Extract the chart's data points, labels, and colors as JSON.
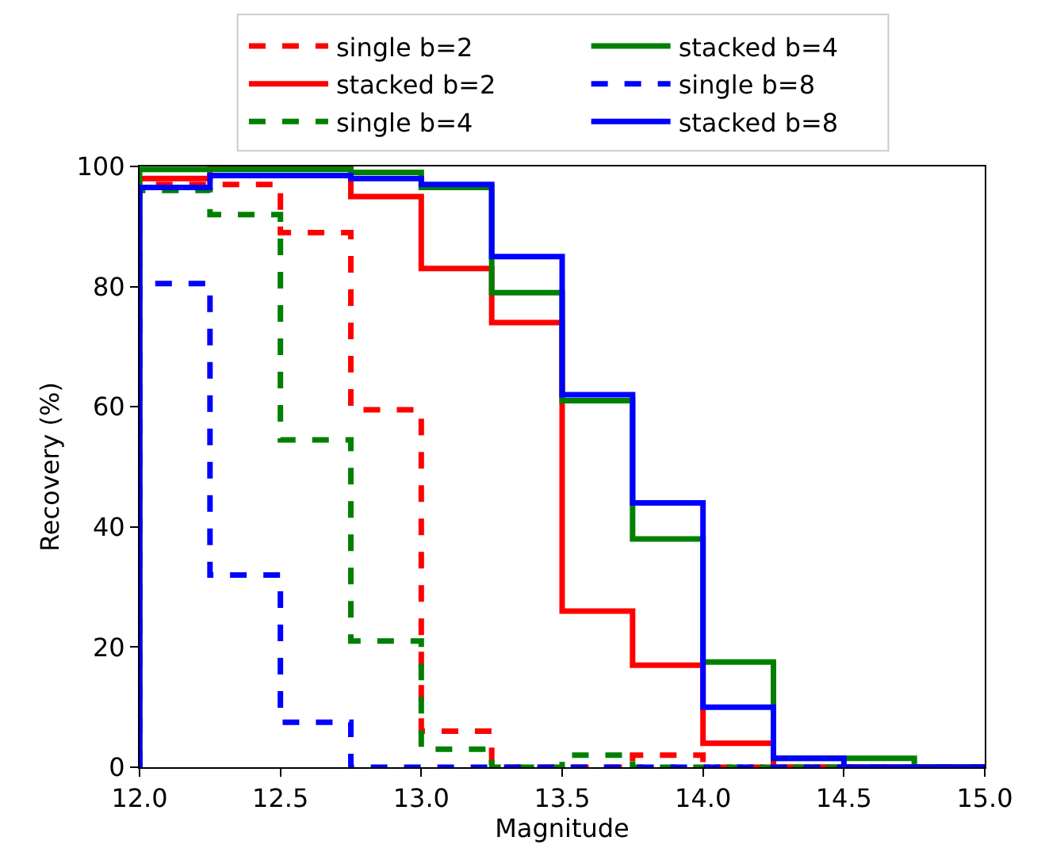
{
  "chart_data": {
    "type": "histogram",
    "xlabel": "Magnitude",
    "ylabel": "Recovery (%)",
    "bins": [
      12.0,
      12.25,
      12.5,
      12.75,
      13.0,
      13.25,
      13.5,
      13.75,
      14.0,
      14.25,
      14.5,
      14.75,
      15.0
    ],
    "series": [
      {
        "name": "single b=2",
        "color": "#ff0000",
        "line_style": "dashed",
        "values": [
          97,
          97,
          89,
          59.5,
          6,
          0,
          0,
          2,
          0,
          0,
          0,
          0
        ]
      },
      {
        "name": "stacked b=2",
        "color": "#ff0000",
        "line_style": "solid",
        "values": [
          98,
          100,
          100,
          95,
          83,
          74,
          26,
          17,
          4,
          0,
          0,
          0
        ]
      },
      {
        "name": "single b=4",
        "color": "#008000",
        "line_style": "dashed",
        "values": [
          96,
          92,
          54.5,
          21,
          3,
          0,
          2,
          0,
          0,
          0,
          0,
          0
        ]
      },
      {
        "name": "stacked b=4",
        "color": "#008000",
        "line_style": "solid",
        "values": [
          99.5,
          99.5,
          99.5,
          99,
          96.5,
          79,
          61,
          38,
          17.5,
          1.5,
          1.5,
          0
        ]
      },
      {
        "name": "single b=8",
        "color": "#0000ff",
        "line_style": "dashed",
        "values": [
          80.5,
          32,
          7.5,
          0,
          0,
          0,
          0,
          0,
          0,
          0,
          0,
          0
        ]
      },
      {
        "name": "stacked b=8",
        "color": "#0000ff",
        "line_style": "solid",
        "values": [
          96.5,
          98.5,
          98.5,
          98,
          97,
          85,
          62,
          44,
          10,
          1.5,
          0,
          0
        ]
      }
    ],
    "xlim": [
      12.0,
      15.0
    ],
    "xticks": [
      {
        "value": 12.0,
        "label": "12.0"
      },
      {
        "value": 12.5,
        "label": "12.5"
      },
      {
        "value": 13.0,
        "label": "13.0"
      },
      {
        "value": 13.5,
        "label": "13.5"
      },
      {
        "value": 14.0,
        "label": "14.0"
      },
      {
        "value": 14.5,
        "label": "14.5"
      },
      {
        "value": 15.0,
        "label": "15.0"
      }
    ],
    "ylim": [
      0,
      100
    ],
    "yticks": [
      0,
      20,
      40,
      60,
      80,
      100
    ],
    "legend": "top"
  }
}
